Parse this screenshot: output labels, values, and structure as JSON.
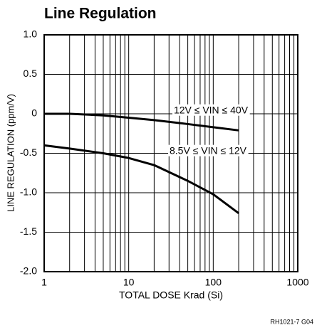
{
  "chart_data": {
    "type": "line",
    "title": "Line Regulation",
    "x_label": "TOTAL DOSE Krad (Si)",
    "y_label": "LINE REGULATION (ppm/V)",
    "footnote": "RH1021-7 G04",
    "x": [
      1,
      2,
      5,
      10,
      20,
      50,
      100,
      200
    ],
    "series": [
      {
        "name": "12V ≤ VIN ≤ 40V",
        "color": "#000000",
        "values": [
          0,
          0,
          -0.02,
          -0.05,
          -0.08,
          -0.13,
          -0.17,
          -0.21
        ]
      },
      {
        "name": "8.5V ≤ VIN ≤ 12V",
        "color": "#000000",
        "values": [
          -0.4,
          -0.44,
          -0.5,
          -0.56,
          -0.65,
          -0.85,
          -1.02,
          -1.26
        ]
      }
    ],
    "xlim": [
      1,
      1000
    ],
    "xticks": [
      1,
      10,
      100,
      1000
    ],
    "xscale": "log",
    "ylim": [
      -2.0,
      1.0
    ],
    "yticks": [
      {
        "value": 1.0,
        "label": "1.0"
      },
      0.5,
      0,
      -0.5,
      {
        "value": -1.0,
        "label": "-1.0"
      },
      -1.5,
      {
        "value": -2.0,
        "label": "-2.0"
      }
    ],
    "grid": true
  }
}
